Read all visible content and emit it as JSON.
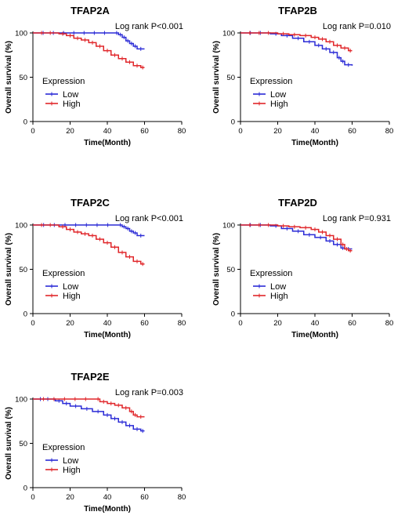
{
  "colors": {
    "low": "#2b2bd6",
    "high": "#e0262a"
  },
  "chart_data": [
    {
      "type": "line",
      "title": "TFAP2A",
      "annotation": "Log rank P<0.001",
      "xlabel": "Time(Month)",
      "ylabel": "Overall survival (%)",
      "xlim": [
        0,
        80
      ],
      "ylim": [
        0,
        100
      ],
      "xticks": [
        "0",
        "20",
        "40",
        "60",
        "80"
      ],
      "yticks": [
        "0",
        "50",
        "100"
      ],
      "legend_title": "Expression",
      "series": [
        {
          "name": "Low",
          "color": "low",
          "x": [
            0,
            44,
            46,
            48,
            50,
            52,
            54,
            56,
            60
          ],
          "y": [
            100,
            100,
            98,
            95,
            91,
            88,
            85,
            82,
            82
          ]
        },
        {
          "name": "High",
          "color": "high",
          "x": [
            0,
            14,
            18,
            22,
            26,
            30,
            34,
            38,
            42,
            46,
            50,
            54,
            58,
            60
          ],
          "y": [
            100,
            99,
            97,
            94,
            92,
            89,
            85,
            80,
            75,
            71,
            67,
            63,
            61,
            61
          ]
        }
      ]
    },
    {
      "type": "line",
      "title": "TFAP2B",
      "annotation": "Log rank P=0.010",
      "xlabel": "Time(Month)",
      "ylabel": "Overall survival (%)",
      "xlim": [
        0,
        80
      ],
      "ylim": [
        0,
        100
      ],
      "xticks": [
        "0",
        "20",
        "40",
        "60",
        "80"
      ],
      "yticks": [
        "0",
        "50",
        "100"
      ],
      "legend_title": "Expression",
      "series": [
        {
          "name": "Low",
          "color": "low",
          "x": [
            0,
            16,
            22,
            28,
            34,
            40,
            44,
            48,
            52,
            54,
            56,
            60
          ],
          "y": [
            100,
            99,
            97,
            94,
            90,
            86,
            82,
            78,
            72,
            68,
            64,
            63
          ]
        },
        {
          "name": "High",
          "color": "high",
          "x": [
            0,
            20,
            26,
            32,
            38,
            42,
            46,
            50,
            54,
            58,
            60
          ],
          "y": [
            100,
            99,
            98,
            97,
            95,
            93,
            90,
            86,
            83,
            80,
            80
          ]
        }
      ]
    },
    {
      "type": "line",
      "title": "TFAP2C",
      "annotation": "Log rank P<0.001",
      "xlabel": "Time(Month)",
      "ylabel": "Overall survival (%)",
      "xlim": [
        0,
        80
      ],
      "ylim": [
        0,
        100
      ],
      "xticks": [
        "0",
        "20",
        "40",
        "60",
        "80"
      ],
      "yticks": [
        "0",
        "50",
        "100"
      ],
      "legend_title": "Expression",
      "series": [
        {
          "name": "Low",
          "color": "low",
          "x": [
            0,
            46,
            48,
            50,
            52,
            54,
            56,
            60
          ],
          "y": [
            100,
            100,
            98,
            96,
            93,
            91,
            88,
            88
          ]
        },
        {
          "name": "High",
          "color": "high",
          "x": [
            0,
            14,
            18,
            22,
            26,
            30,
            34,
            38,
            42,
            46,
            50,
            54,
            58,
            60
          ],
          "y": [
            100,
            98,
            95,
            92,
            90,
            88,
            84,
            80,
            75,
            69,
            64,
            59,
            56,
            56
          ]
        }
      ]
    },
    {
      "type": "line",
      "title": "TFAP2D",
      "annotation": "Log rank P=0.931",
      "xlabel": "Time(Month)",
      "ylabel": "Overall survival (%)",
      "xlim": [
        0,
        80
      ],
      "ylim": [
        0,
        100
      ],
      "xticks": [
        "0",
        "20",
        "40",
        "60",
        "80"
      ],
      "yticks": [
        "0",
        "50",
        "100"
      ],
      "legend_title": "Expression",
      "series": [
        {
          "name": "Low",
          "color": "low",
          "x": [
            0,
            16,
            22,
            28,
            34,
            40,
            46,
            50,
            54,
            56,
            60
          ],
          "y": [
            100,
            99,
            96,
            93,
            89,
            86,
            82,
            78,
            74,
            73,
            73
          ]
        },
        {
          "name": "High",
          "color": "high",
          "x": [
            0,
            20,
            26,
            32,
            38,
            42,
            46,
            50,
            54,
            56,
            58,
            60
          ],
          "y": [
            100,
            99,
            98,
            97,
            95,
            92,
            88,
            84,
            78,
            73,
            71,
            71
          ]
        }
      ]
    },
    {
      "type": "line",
      "title": "TFAP2E",
      "annotation": "Log rank P=0.003",
      "xlabel": "Time(Month)",
      "ylabel": "Overall survival (%)",
      "xlim": [
        0,
        80
      ],
      "ylim": [
        0,
        100
      ],
      "xticks": [
        "0",
        "20",
        "40",
        "60",
        "80"
      ],
      "yticks": [
        "0",
        "50",
        "100"
      ],
      "legend_title": "Expression",
      "series": [
        {
          "name": "Low",
          "color": "low",
          "x": [
            0,
            12,
            16,
            20,
            26,
            32,
            38,
            42,
            46,
            50,
            54,
            58,
            60
          ],
          "y": [
            100,
            98,
            95,
            92,
            89,
            86,
            82,
            78,
            74,
            70,
            66,
            64,
            64
          ]
        },
        {
          "name": "High",
          "color": "high",
          "x": [
            0,
            34,
            36,
            40,
            44,
            48,
            52,
            54,
            56,
            60
          ],
          "y": [
            100,
            100,
            97,
            95,
            93,
            90,
            86,
            82,
            80,
            80
          ]
        }
      ]
    }
  ]
}
